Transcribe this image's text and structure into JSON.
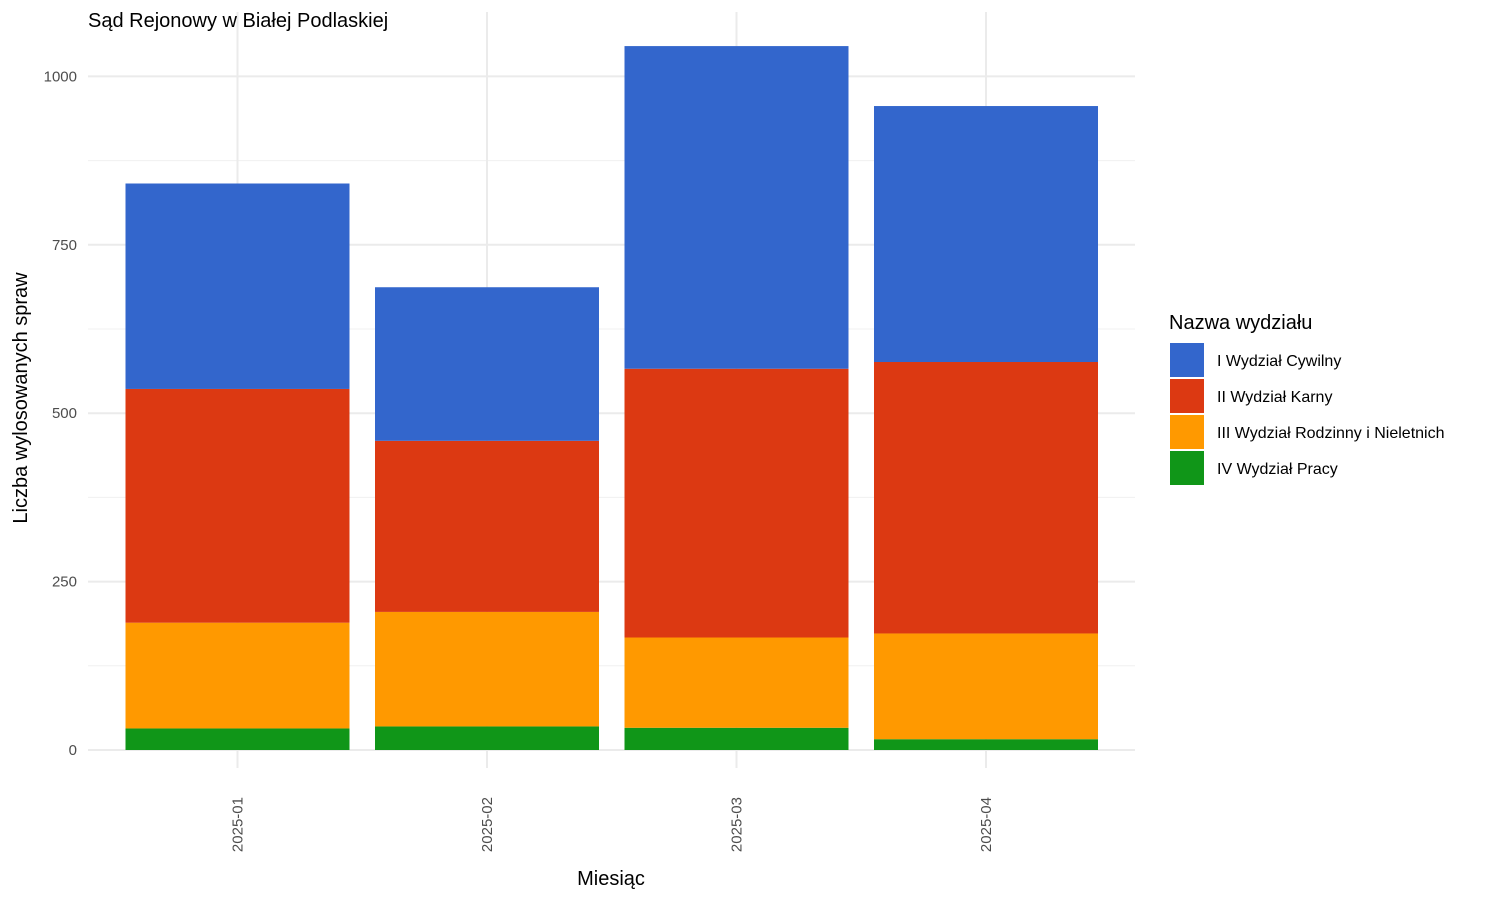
{
  "chart_data": {
    "type": "bar",
    "stacked": true,
    "title": "Sąd Rejonowy w Białej Podlaskiej",
    "xlabel": "Miesiąc",
    "ylabel": "Liczba wylosowanych spraw",
    "categories": [
      "2025-01",
      "2025-02",
      "2025-03",
      "2025-04"
    ],
    "ylim": [
      0,
      1045
    ],
    "yticks": [
      0,
      250,
      500,
      750,
      1000
    ],
    "grid": true,
    "legend": {
      "title": "Nazwa wydziału",
      "position": "right"
    },
    "series": [
      {
        "name": "IV Wydział Pracy",
        "color": "#109618",
        "values": [
          32,
          35,
          33,
          16
        ]
      },
      {
        "name": "III Wydział Rodzinny i Nieletnich",
        "color": "#FF9900",
        "values": [
          157,
          170,
          134,
          157
        ]
      },
      {
        "name": "II Wydział Karny",
        "color": "#DC3912",
        "values": [
          347,
          254,
          399,
          403
        ]
      },
      {
        "name": "I Wydział Cywilny",
        "color": "#3366CC",
        "values": [
          305,
          228,
          479,
          380
        ]
      }
    ]
  }
}
